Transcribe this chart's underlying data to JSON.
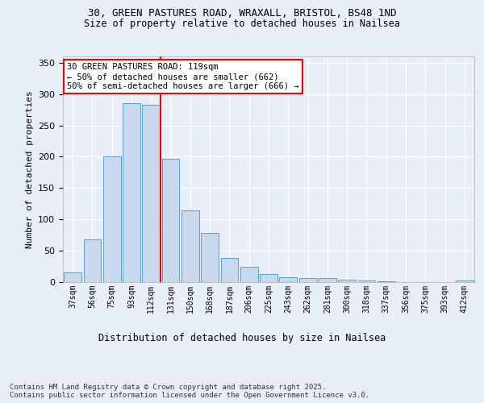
{
  "title1": "30, GREEN PASTURES ROAD, WRAXALL, BRISTOL, BS48 1ND",
  "title2": "Size of property relative to detached houses in Nailsea",
  "xlabel": "Distribution of detached houses by size in Nailsea",
  "ylabel": "Number of detached properties",
  "categories": [
    "37sqm",
    "56sqm",
    "75sqm",
    "93sqm",
    "112sqm",
    "131sqm",
    "150sqm",
    "168sqm",
    "187sqm",
    "206sqm",
    "225sqm",
    "243sqm",
    "262sqm",
    "281sqm",
    "300sqm",
    "318sqm",
    "337sqm",
    "356sqm",
    "375sqm",
    "393sqm",
    "412sqm"
  ],
  "values": [
    15,
    68,
    200,
    285,
    283,
    197,
    115,
    79,
    39,
    24,
    13,
    8,
    6,
    6,
    4,
    2,
    1,
    0,
    0,
    0,
    2
  ],
  "bar_color": "#c8d9ed",
  "bar_edge_color": "#5a9fd4",
  "vline_x": 4.5,
  "vline_color": "red",
  "annotation_text": "30 GREEN PASTURES ROAD: 119sqm\n← 50% of detached houses are smaller (662)\n50% of semi-detached houses are larger (666) →",
  "annotation_box_color": "white",
  "annotation_box_edge": "red",
  "ylim": [
    0,
    360
  ],
  "yticks": [
    0,
    50,
    100,
    150,
    200,
    250,
    300,
    350
  ],
  "footer": "Contains HM Land Registry data © Crown copyright and database right 2025.\nContains public sector information licensed under the Open Government Licence v3.0.",
  "bg_color": "#e8eef8",
  "plot_bg_color": "#e8eef8"
}
